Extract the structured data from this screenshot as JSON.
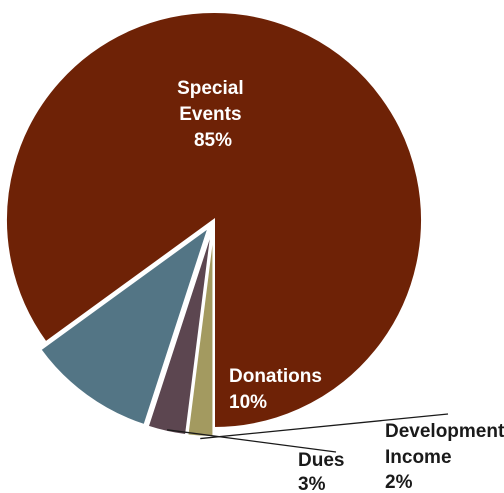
{
  "chart_data": {
    "type": "pie",
    "slices": [
      {
        "label_lines": [
          "Special",
          "Events"
        ],
        "value": 85,
        "value_label": "85%",
        "color": "#6e2206"
      },
      {
        "label_lines": [
          "Donations"
        ],
        "value": 10,
        "value_label": "10%",
        "color": "#537585"
      },
      {
        "label_lines": [
          "Dues"
        ],
        "value": 3,
        "value_label": "3%",
        "color": "#5c4650"
      },
      {
        "label_lines": [
          "Development",
          "Income"
        ],
        "value": 2,
        "value_label": "2%",
        "color": "#a39a60"
      }
    ],
    "exploded_slices": [
      "Donations",
      "Dues",
      "Development Income"
    ],
    "legend": "none"
  }
}
